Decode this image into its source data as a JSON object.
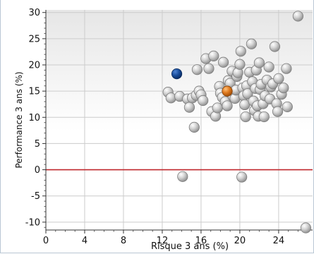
{
  "chart_data": {
    "type": "scatter",
    "xlabel": "Risque 3 ans (%)",
    "ylabel": "Performance 3 ans (%)",
    "xlim": [
      0,
      27.5
    ],
    "ylim": [
      -11.5,
      30.5
    ],
    "x_ticks": [
      0,
      4,
      8,
      12,
      16,
      20,
      24
    ],
    "y_ticks": [
      -10,
      -5,
      0,
      5,
      10,
      15,
      20,
      25,
      30
    ],
    "y_tick_labels": [
      "-10",
      "-5",
      "0",
      "5",
      "10",
      "15",
      "20",
      "25",
      "30"
    ],
    "x_tick_labels": [
      "0",
      "4",
      "8",
      "12",
      "16",
      "20",
      "24"
    ],
    "grid": true,
    "reference_line": {
      "y": 0,
      "color": "#c0282d"
    },
    "colors": {
      "peer": "#bdbdbd",
      "highlight_blue": "#1a4e9c",
      "highlight_orange": "#e07a1f",
      "grid": "#cccccc",
      "plot_top": "#e6e6e6",
      "plot_bottom": "#ffffff"
    },
    "series": [
      {
        "role": "peer",
        "points": [
          [
            26.0,
            29.3
          ],
          [
            12.6,
            14.8
          ],
          [
            12.9,
            13.7
          ],
          [
            13.8,
            14.0
          ],
          [
            14.1,
            -1.3
          ],
          [
            14.6,
            13.5
          ],
          [
            14.8,
            11.9
          ],
          [
            15.1,
            13.7
          ],
          [
            15.3,
            8.1
          ],
          [
            15.5,
            14.2
          ],
          [
            15.6,
            19.1
          ],
          [
            15.8,
            15.0
          ],
          [
            16.0,
            14.3
          ],
          [
            16.2,
            13.2
          ],
          [
            16.5,
            21.2
          ],
          [
            16.8,
            19.3
          ],
          [
            17.1,
            11.1
          ],
          [
            17.3,
            21.7
          ],
          [
            17.5,
            10.2
          ],
          [
            17.7,
            11.8
          ],
          [
            17.9,
            15.9
          ],
          [
            18.0,
            14.6
          ],
          [
            18.2,
            13.8
          ],
          [
            18.3,
            20.5
          ],
          [
            18.5,
            13.0
          ],
          [
            18.7,
            12.2
          ],
          [
            18.8,
            17.0
          ],
          [
            19.0,
            16.5
          ],
          [
            19.2,
            18.8
          ],
          [
            19.3,
            14.0
          ],
          [
            19.5,
            13.6
          ],
          [
            19.6,
            15.2
          ],
          [
            19.7,
            17.8
          ],
          [
            19.8,
            18.5
          ],
          [
            20.0,
            20.1
          ],
          [
            20.1,
            22.6
          ],
          [
            20.2,
            -1.4
          ],
          [
            20.3,
            15.6
          ],
          [
            20.4,
            14.1
          ],
          [
            20.5,
            12.4
          ],
          [
            20.6,
            10.1
          ],
          [
            20.7,
            16.0
          ],
          [
            20.8,
            14.5
          ],
          [
            21.0,
            18.6
          ],
          [
            21.2,
            24.0
          ],
          [
            21.3,
            16.8
          ],
          [
            21.4,
            13.1
          ],
          [
            21.5,
            11.3
          ],
          [
            21.6,
            15.5
          ],
          [
            21.7,
            19.0
          ],
          [
            21.8,
            12.2
          ],
          [
            21.9,
            10.2
          ],
          [
            22.0,
            20.4
          ],
          [
            22.1,
            15.3
          ],
          [
            22.2,
            16.3
          ],
          [
            22.4,
            12.6
          ],
          [
            22.5,
            10.1
          ],
          [
            22.6,
            14.1
          ],
          [
            22.8,
            17.1
          ],
          [
            23.0,
            19.6
          ],
          [
            23.1,
            13.5
          ],
          [
            23.2,
            15.8
          ],
          [
            23.4,
            16.4
          ],
          [
            23.6,
            23.5
          ],
          [
            23.8,
            12.6
          ],
          [
            23.9,
            11.1
          ],
          [
            24.0,
            17.4
          ],
          [
            24.3,
            14.4
          ],
          [
            24.5,
            15.6
          ],
          [
            24.8,
            19.3
          ],
          [
            24.9,
            12.0
          ],
          [
            26.8,
            -11.1
          ]
        ]
      },
      {
        "role": "highlight_blue",
        "points": [
          [
            13.5,
            18.3
          ]
        ]
      },
      {
        "role": "highlight_orange",
        "points": [
          [
            18.7,
            15.0
          ]
        ]
      }
    ]
  }
}
